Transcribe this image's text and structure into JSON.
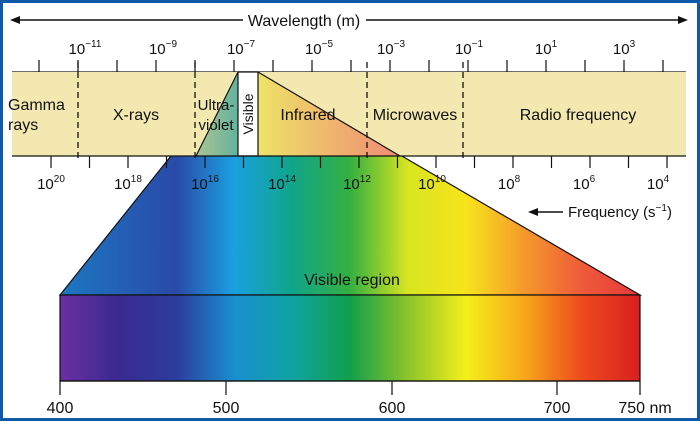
{
  "colors": {
    "frame": "#0e5aa8",
    "band": "#f3e8b0",
    "background": "#ffffff"
  },
  "wavelength_axis": {
    "title": "Wavelength (m)",
    "ticks": [
      {
        "base": "10",
        "exp": "−11"
      },
      {
        "base": "10",
        "exp": "−9"
      },
      {
        "base": "10",
        "exp": "−7"
      },
      {
        "base": "10",
        "exp": "−5"
      },
      {
        "base": "10",
        "exp": "−3"
      },
      {
        "base": "10",
        "exp": "−1"
      },
      {
        "base": "10",
        "exp": "1"
      },
      {
        "base": "10",
        "exp": "3"
      }
    ]
  },
  "frequency_axis": {
    "title": "Frequency (s",
    "title_exp": "−1",
    "title_close": ")",
    "ticks": [
      {
        "base": "10",
        "exp": "20"
      },
      {
        "base": "10",
        "exp": "18"
      },
      {
        "base": "10",
        "exp": "16"
      },
      {
        "base": "10",
        "exp": "14"
      },
      {
        "base": "10",
        "exp": "12"
      },
      {
        "base": "10",
        "exp": "10"
      },
      {
        "base": "10",
        "exp": "8"
      },
      {
        "base": "10",
        "exp": "6"
      },
      {
        "base": "10",
        "exp": "4"
      }
    ]
  },
  "regions": {
    "gamma": [
      "Gamma",
      "rays"
    ],
    "xrays": "X-rays",
    "uv": [
      "Ultra-",
      "violet"
    ],
    "visible": "Visible",
    "infrared": "Infrared",
    "microwaves": "Microwaves",
    "radio": "Radio frequency"
  },
  "visible_region": {
    "title": "Visible region",
    "ticks": [
      "400",
      "500",
      "600",
      "700",
      "750 nm"
    ]
  }
}
